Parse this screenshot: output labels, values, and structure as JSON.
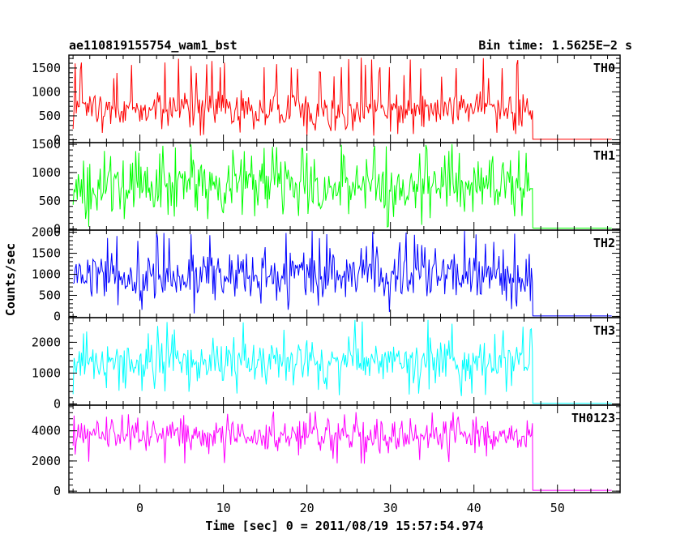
{
  "chart_data": {
    "type": "line",
    "title": "ae110819155754_wam1_bst",
    "subtitle": "Bin time: 1.5625E−2 s",
    "xlabel": "Time [sec] 0 = 2011/08/19 15:57:54.974",
    "ylabel": "Counts/sec",
    "xlim": [
      -8.5,
      57.5
    ],
    "x_ticks": [
      0,
      10,
      20,
      30,
      40,
      50
    ],
    "active_interval": [
      -8,
      47
    ],
    "data_end": 56.5,
    "panels": [
      {
        "name": "TH0",
        "color": "#ff0000",
        "ylim": [
          -60,
          1770
        ],
        "yticks": [
          0,
          500,
          1000,
          1500
        ],
        "mean": 650,
        "spread": 200,
        "spike_max": 1720,
        "floor": 60,
        "tail": 10
      },
      {
        "name": "TH1",
        "color": "#00ff00",
        "ylim": [
          -20,
          1530
        ],
        "yticks": [
          0,
          500,
          1000,
          1500
        ],
        "mean": 750,
        "spread": 240,
        "spike_max": 1510,
        "floor": 20,
        "tail": 15
      },
      {
        "name": "TH2",
        "color": "#0000ff",
        "ylim": [
          -30,
          2050
        ],
        "yticks": [
          0,
          500,
          1000,
          1500,
          2000
        ],
        "mean": 950,
        "spread": 290,
        "spike_max": 2040,
        "floor": 60,
        "tail": 10
      },
      {
        "name": "TH3",
        "color": "#00ffff",
        "ylim": [
          -40,
          2800
        ],
        "yticks": [
          0,
          1000,
          2000
        ],
        "mean": 1400,
        "spread": 340,
        "spike_max": 2750,
        "floor": 250,
        "tail": 20
      },
      {
        "name": "TH0123",
        "color": "#ff00ff",
        "ylim": [
          -100,
          5700
        ],
        "yticks": [
          0,
          2000,
          4000
        ],
        "mean": 3650,
        "spread": 520,
        "spike_max": 5300,
        "floor": 1800,
        "tail": 55
      }
    ]
  }
}
